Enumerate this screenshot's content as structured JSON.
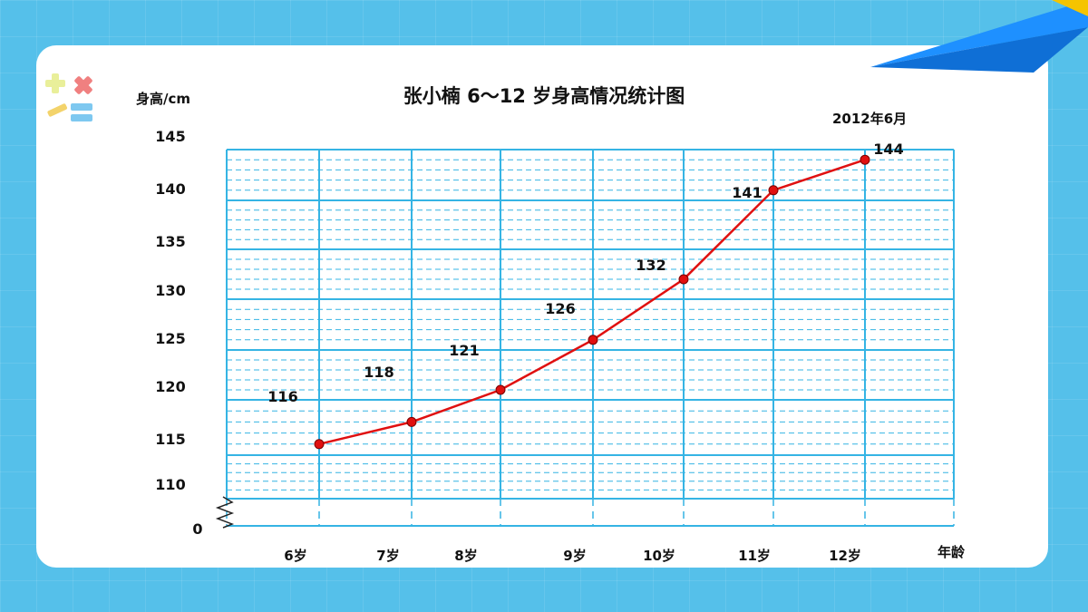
{
  "chart_data": {
    "type": "line",
    "title": "张小楠 6～12 岁身高情况统计图",
    "ylabel": "身高/cm",
    "xlabel": "年龄",
    "annotation": "2012年6月",
    "categories": [
      "6岁",
      "7岁",
      "8岁",
      "9岁",
      "10岁",
      "11岁",
      "12岁"
    ],
    "values": [
      116,
      118,
      121,
      126,
      132,
      141,
      144
    ],
    "value_labels": [
      "116",
      "118",
      "121",
      "126",
      "132",
      "141",
      "144"
    ],
    "yticks": [
      "145",
      "140",
      "135",
      "130",
      "125",
      "120",
      "115",
      "110",
      "0"
    ],
    "ylim": [
      110,
      145
    ],
    "axis_break": true,
    "grid": true,
    "colors": {
      "line": "#e01010",
      "marker": "#e01010",
      "grid": "#35b4e4",
      "background": "#55c0ea"
    }
  }
}
